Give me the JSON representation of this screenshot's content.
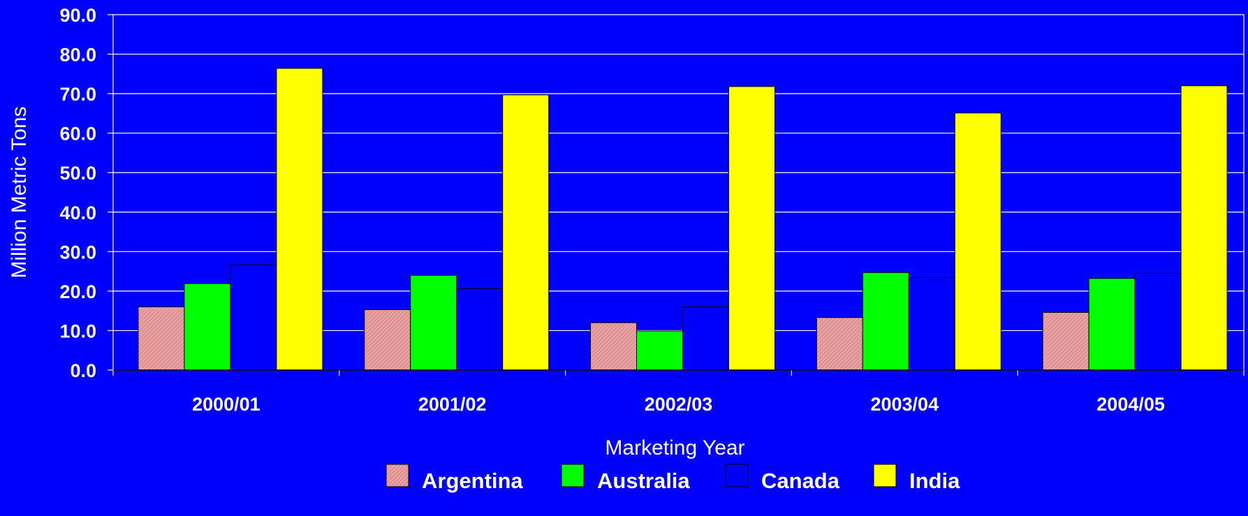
{
  "chart_data": {
    "type": "bar",
    "title": "",
    "xlabel": "Marketing Year",
    "ylabel": "Million Metric Tons",
    "categories": [
      "2000/01",
      "2001/02",
      "2002/03",
      "2003/04",
      "2004/05"
    ],
    "ylim": [
      0,
      90
    ],
    "yticks": [
      "0.0",
      "10.0",
      "20.0",
      "30.0",
      "40.0",
      "50.0",
      "60.0",
      "70.0",
      "80.0",
      "90.0"
    ],
    "grid": true,
    "legend_position": "bottom",
    "series": [
      {
        "name": "Argentina",
        "color": "#e8a0a0",
        "pattern": "hatched",
        "values": [
          16.0,
          15.3,
          12.0,
          13.3,
          14.6
        ]
      },
      {
        "name": "Australia",
        "color": "#00ff00",
        "values": [
          21.9,
          24.0,
          9.9,
          24.7,
          23.2
        ]
      },
      {
        "name": "Canada",
        "color": "#0000ff",
        "values": [
          26.6,
          20.6,
          16.0,
          23.4,
          24.5
        ]
      },
      {
        "name": "India",
        "color": "#ffff00",
        "values": [
          76.4,
          69.7,
          71.8,
          65.1,
          72.0
        ]
      }
    ]
  }
}
